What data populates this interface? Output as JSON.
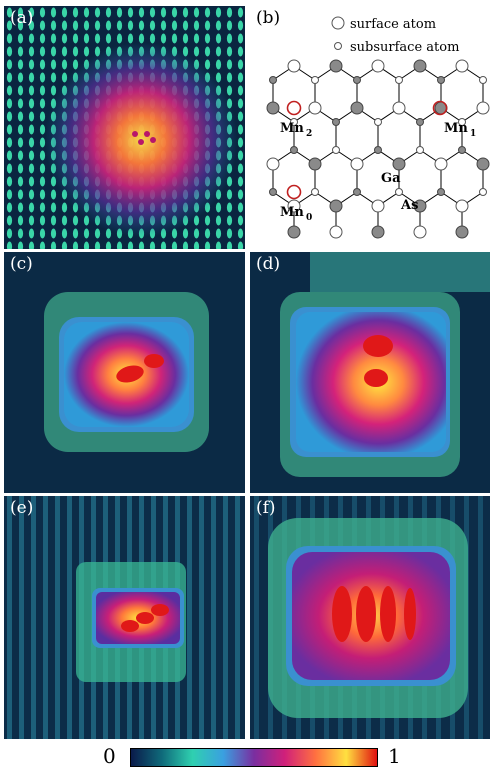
{
  "panels": {
    "a": {
      "label": "(a)"
    },
    "b": {
      "label": "(b)"
    },
    "c": {
      "label": "(c)"
    },
    "d": {
      "label": "(d)"
    },
    "e": {
      "label": "(e)"
    },
    "f": {
      "label": "(f)"
    }
  },
  "legend": {
    "surface": "surface atom",
    "subsurface": "subsurface atom"
  },
  "lattice_labels": {
    "mn2": "Mn",
    "mn2_sub": "2",
    "mn1": "Mn",
    "mn1_sub": "1",
    "mn0": "Mn",
    "mn0_sub": "0",
    "ga": "Ga",
    "as": "As"
  },
  "colorbar": {
    "min_label": "0",
    "max_label": "1",
    "colors": [
      "#0a1a4a",
      "#0f6a7a",
      "#2fd0b0",
      "#3aa0e0",
      "#7a2ea0",
      "#d0207a",
      "#ff7040",
      "#ffe040",
      "#e01010"
    ]
  }
}
